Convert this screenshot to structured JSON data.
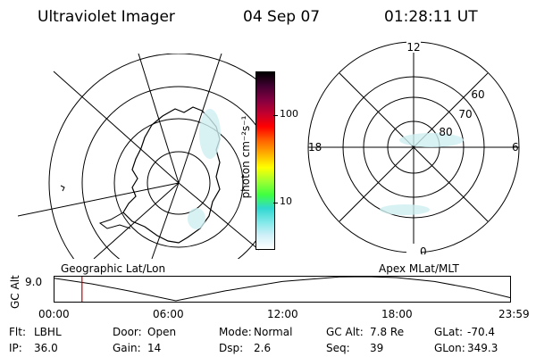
{
  "header": {
    "instrument": "Ultraviolet Imager",
    "date": "04 Sep 07",
    "time": "01:28:11 UT"
  },
  "colorbar": {
    "unit_label": "photon cm⁻²s⁻¹",
    "ticks": [
      {
        "label": "100",
        "value": 100
      },
      {
        "label": "10",
        "value": 10
      }
    ],
    "colors": [
      "#ffffff",
      "#d0f0f8",
      "#7fe8e8",
      "#30d8d0",
      "#40ff40",
      "#a0ff30",
      "#ffff00",
      "#ffb000",
      "#ff6000",
      "#ff0000",
      "#c00030",
      "#800040",
      "#400030",
      "#000000"
    ]
  },
  "left_map": {
    "label": "Geographic Lat/Lon"
  },
  "right_map": {
    "label": "Apex MLat/MLT",
    "mlt_labels": {
      "top": "12",
      "right": "6",
      "bottom": "0",
      "left": "18"
    },
    "lat_labels": [
      {
        "label": "60",
        "lat": 60
      },
      {
        "label": "70",
        "lat": 70
      },
      {
        "label": "80",
        "lat": 80
      }
    ]
  },
  "altitude_plot": {
    "ylabel": "GC Alt",
    "ytick": "9.0",
    "ymax": 9.0,
    "ymin": 1.0,
    "x_ticks": [
      "00:00",
      "06:00",
      "12:00",
      "18:00",
      "23:59"
    ],
    "current_time_hours": 1.47,
    "curve_hours": [
      0,
      2,
      4,
      6.4,
      9,
      12,
      15,
      16.5,
      18,
      20,
      22,
      24
    ],
    "curve_alt": [
      8.5,
      6.6,
      4.2,
      1.0,
      4.3,
      7.4,
      8.9,
      9.0,
      8.7,
      7.4,
      5.1,
      2.0
    ]
  },
  "footer": [
    [
      {
        "label": "Flt:",
        "value": "LBHL"
      },
      {
        "label": "Door:",
        "value": "Open"
      },
      {
        "label": "Mode:",
        "value": "Normal"
      },
      {
        "label": "GC Alt:",
        "value": "7.8 Re"
      },
      {
        "label": "GLat:",
        "value": "-70.4"
      }
    ],
    [
      {
        "label": "IP:",
        "value": "36.0"
      },
      {
        "label": "Gain:",
        "value": "14"
      },
      {
        "label": "Dsp:",
        "value": "2.6"
      },
      {
        "label": "Seq:",
        "value": "39"
      },
      {
        "label": "GLon:",
        "value": "349.3"
      }
    ]
  ]
}
